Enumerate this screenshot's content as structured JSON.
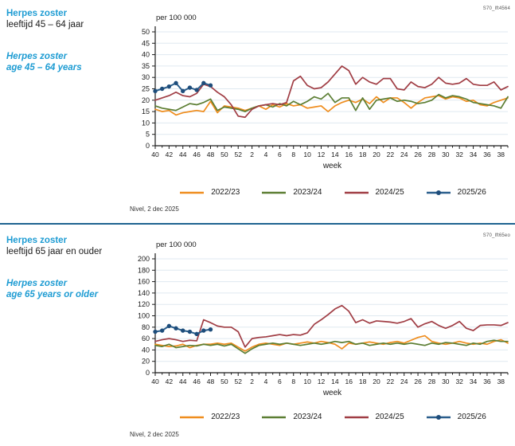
{
  "colors": {
    "heading_teal": "#1e9cd3",
    "divider_blue": "#1d6390",
    "axis": "#1a1a1a",
    "gridline": "#dfe9f0"
  },
  "charts": [
    {
      "id_label": "S70_lft4564",
      "title_nl_1": "Herpes zoster",
      "title_nl_2": "leeftijd 45 – 64 jaar",
      "title_en_1": "Herpes zoster",
      "title_en_2": "age 45 – 64 years",
      "unit_label": "per 100 000",
      "footer": "Nivel, 2 dec 2025",
      "chart_data": {
        "type": "line",
        "xlabel": "week",
        "ylabel": "per 100 000",
        "ylim": [
          0,
          50
        ],
        "ytick_step": 5,
        "grid": "horizontal",
        "legend_position": "bottom",
        "x_weeks": [
          40,
          41,
          42,
          43,
          44,
          45,
          46,
          47,
          48,
          49,
          50,
          51,
          52,
          1,
          2,
          3,
          4,
          5,
          6,
          7,
          8,
          9,
          10,
          11,
          12,
          13,
          14,
          15,
          16,
          17,
          18,
          19,
          20,
          21,
          22,
          23,
          24,
          25,
          26,
          27,
          28,
          29,
          30,
          31,
          32,
          33,
          34,
          35,
          36,
          37,
          38,
          39
        ],
        "series": [
          {
            "name": "2022/23",
            "color": "#ef8d1e",
            "marker": false,
            "values": [
              16,
              15,
              15.5,
              13.5,
              14.5,
              15,
              15.5,
              15,
              19.5,
              14.5,
              17.5,
              17,
              16.5,
              15.5,
              16.5,
              17.5,
              16,
              18,
              17,
              18.5,
              17.5,
              18,
              16.5,
              17,
              17.5,
              15,
              17.5,
              19,
              20,
              19,
              20.5,
              18.5,
              21.5,
              19,
              21,
              21,
              19,
              16.5,
              19,
              21,
              21.5,
              22,
              20.5,
              21.5,
              21,
              19.5,
              20,
              18,
              17.5,
              19,
              20,
              21
            ]
          },
          {
            "name": "2023/24",
            "color": "#5c7e33",
            "marker": false,
            "values": [
              17.5,
              16.5,
              16,
              15.5,
              17,
              18.5,
              18,
              19,
              20.5,
              15.5,
              17,
              16.5,
              16,
              15,
              16.5,
              17.5,
              18,
              17,
              18.5,
              17.5,
              19.5,
              18,
              19.5,
              21.5,
              20.5,
              23,
              19,
              21,
              21,
              15.5,
              21,
              16,
              20,
              20.5,
              21,
              19.5,
              20,
              19.5,
              18.5,
              19,
              20,
              22.5,
              21,
              22,
              21.5,
              20.5,
              19,
              18.5,
              18,
              17.5,
              16.5,
              21.5
            ]
          },
          {
            "name": "2024/25",
            "color": "#a03d44",
            "marker": false,
            "values": [
              20,
              21,
              22,
              23.5,
              22,
              21.5,
              23,
              27,
              26,
              23.5,
              21.5,
              18,
              13,
              12.5,
              16,
              17.5,
              18,
              18.5,
              18,
              19,
              28.5,
              30.5,
              26.5,
              25,
              25.5,
              28,
              31.5,
              35,
              33,
              27,
              30,
              28,
              27,
              29.5,
              29.5,
              25,
              24.5,
              28,
              26,
              25.5,
              27,
              30,
              27.5,
              27,
              27.5,
              29.5,
              27,
              26.5,
              26.5,
              28,
              24.5,
              26
            ]
          },
          {
            "name": "2025/26",
            "color": "#2a5e8c",
            "marker": true,
            "marker_color": "#1e4d7b",
            "values": [
              24,
              25,
              26,
              27.5,
              24,
              25.5,
              24.5,
              27.5,
              26.5
            ]
          }
        ]
      }
    },
    {
      "id_label": "S70_lft65eo",
      "title_nl_1": "Herpes zoster",
      "title_nl_2": "leeftijd 65 jaar en ouder",
      "title_en_1": "Herpes zoster",
      "title_en_2": "age 65 years or older",
      "unit_label": "per 100 000",
      "footer": "Nivel, 2 dec 2025",
      "chart_data": {
        "type": "line",
        "xlabel": "week",
        "ylabel": "per 100 000",
        "ylim": [
          0,
          200
        ],
        "ytick_step": 20,
        "grid": "horizontal",
        "legend_position": "bottom",
        "x_weeks": [
          40,
          41,
          42,
          43,
          44,
          45,
          46,
          47,
          48,
          49,
          50,
          51,
          52,
          1,
          2,
          3,
          4,
          5,
          6,
          7,
          8,
          9,
          10,
          11,
          12,
          13,
          14,
          15,
          16,
          17,
          18,
          19,
          20,
          21,
          22,
          23,
          24,
          25,
          26,
          27,
          28,
          29,
          30,
          31,
          32,
          33,
          34,
          35,
          36,
          37,
          38,
          39
        ],
        "series": [
          {
            "name": "2022/23",
            "color": "#ef8d1e",
            "marker": false,
            "values": [
              50,
              48,
              46,
              47,
              50,
              44,
              48,
              50,
              50,
              52,
              50,
              52,
              45,
              38,
              45,
              50,
              52,
              50,
              48,
              52,
              50,
              52,
              54,
              52,
              55,
              53,
              50,
              42,
              52,
              50,
              52,
              54,
              52,
              50,
              53,
              55,
              52,
              57,
              62,
              65,
              55,
              52,
              50,
              52,
              55,
              52,
              50,
              52,
              50,
              55,
              58,
              52
            ]
          },
          {
            "name": "2023/24",
            "color": "#5c7e33",
            "marker": false,
            "values": [
              48,
              46,
              50,
              44,
              46,
              48,
              47,
              50,
              48,
              50,
              47,
              50,
              42,
              34,
              42,
              48,
              50,
              52,
              50,
              52,
              50,
              48,
              50,
              52,
              50,
              52,
              55,
              53,
              55,
              50,
              52,
              48,
              50,
              52,
              50,
              52,
              50,
              52,
              50,
              48,
              52,
              50,
              53,
              52,
              50,
              48,
              52,
              50,
              55,
              57,
              55,
              55
            ]
          },
          {
            "name": "2024/25",
            "color": "#a03d44",
            "marker": false,
            "values": [
              55,
              58,
              60,
              58,
              55,
              57,
              56,
              93,
              88,
              82,
              80,
              80,
              72,
              45,
              60,
              62,
              63,
              65,
              67,
              65,
              67,
              66,
              70,
              85,
              93,
              102,
              112,
              118,
              108,
              88,
              93,
              87,
              91,
              90,
              89,
              87,
              90,
              95,
              80,
              86,
              90,
              83,
              78,
              83,
              90,
              78,
              74,
              83,
              84,
              84,
              83,
              88
            ]
          },
          {
            "name": "2025/26",
            "color": "#2a5e8c",
            "marker": true,
            "marker_color": "#1e4d7b",
            "values": [
              72,
              74,
              82,
              78,
              74,
              72,
              68,
              74,
              76
            ]
          }
        ]
      }
    }
  ]
}
